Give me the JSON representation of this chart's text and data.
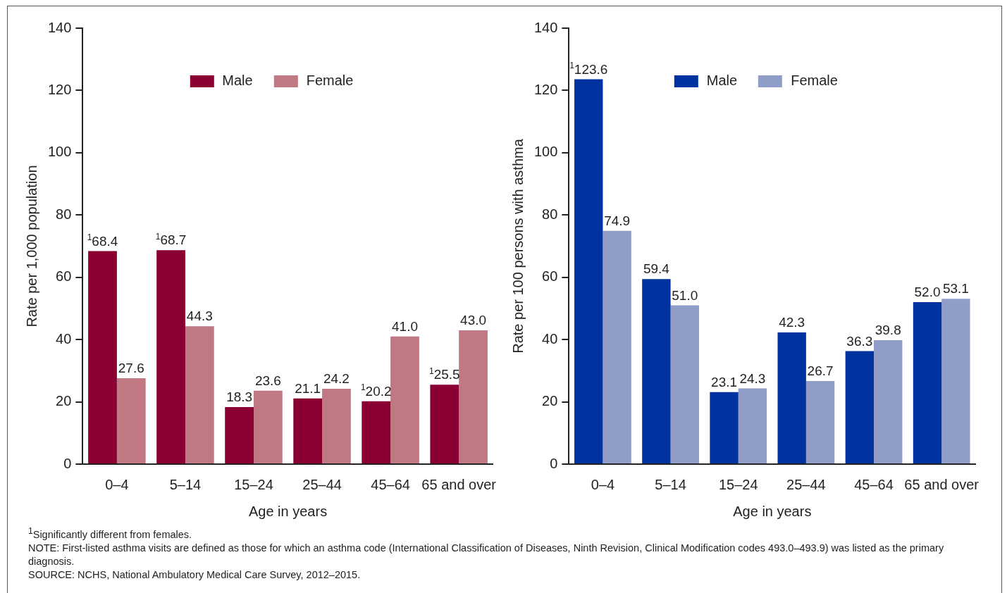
{
  "chart_data": [
    {
      "type": "bar",
      "xlabel": "Age in years",
      "ylabel": "Rate per 1,000 population",
      "categories": [
        "0–4",
        "5–14",
        "15–24",
        "25–44",
        "45–64",
        "65 and over"
      ],
      "series": [
        {
          "name": "Male",
          "color": "#8b0033",
          "values": [
            68.4,
            68.7,
            18.3,
            21.1,
            20.2,
            25.5
          ],
          "value_labels": [
            "$^{1}$68.4",
            "$^{1}$68.7",
            "18.3",
            "21.1",
            "$^{1}$20.2",
            "$^{1}$25.5"
          ]
        },
        {
          "name": "Female",
          "color": "#c07882",
          "values": [
            27.6,
            44.3,
            23.6,
            24.2,
            41.0,
            43.0
          ],
          "value_labels": [
            "27.6",
            "44.3",
            "23.6",
            "24.2",
            "41.0",
            "43.0"
          ]
        }
      ],
      "ylim": [
        0,
        140
      ],
      "yticks": [
        0,
        20,
        40,
        60,
        80,
        100,
        120,
        140
      ],
      "grid": false,
      "legend": "top",
      "data_labels": true,
      "annotations": [
        "$^{1}$Significantly different from females.",
        "NOTE: First-listed asthma visits are defined as those for which an asthma code (International Classification of Diseases, Ninth Revision, Clinical Modification codes 493.0–493.9) was listed as the primary diagnosis.",
        "SOURCE: NCHS, National Ambulatory Medical Care Survey, 2012–2015."
      ]
    },
    {
      "type": "bar",
      "xlabel": "Age in years",
      "ylabel": "Rate per 100 persons with asthma",
      "categories": [
        "0–4",
        "5–14",
        "15–24",
        "25–44",
        "45–64",
        "65 and over"
      ],
      "series": [
        {
          "name": "Male",
          "color": "#0033a0",
          "values": [
            123.6,
            59.4,
            23.1,
            42.3,
            36.3,
            52.0
          ],
          "value_labels": [
            "$^{1}$123.6",
            "59.4",
            "23.1",
            "42.3",
            "36.3",
            "52.0"
          ]
        },
        {
          "name": "Female",
          "color": "#8f9dc8",
          "values": [
            74.9,
            51.0,
            24.3,
            26.7,
            39.8,
            53.1
          ],
          "value_labels": [
            "74.9",
            "51.0",
            "24.3",
            "26.7",
            "39.8",
            "53.1"
          ]
        }
      ],
      "ylim": [
        0,
        140
      ],
      "yticks": [
        0,
        20,
        40,
        60,
        80,
        100,
        120,
        140
      ],
      "grid": false,
      "legend": "top",
      "data_labels": true
    }
  ]
}
